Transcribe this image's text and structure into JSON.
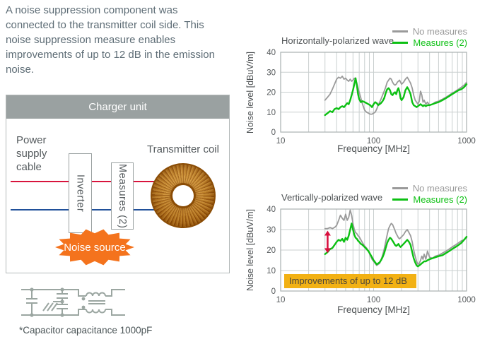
{
  "intro": "A noise suppression component was connected to the transmitter coil side. This noise suppression measure enables improvements of up to 12 dB in the emission noise.",
  "diagram": {
    "title": "Charger unit",
    "cable_label": "Power supply cable",
    "inverter_label": "Inverter",
    "measures_label": "Measures (2)",
    "coil_label": "Transmitter coil",
    "noise_label": "Noise source",
    "colors": {
      "line_red": "#d8143c",
      "line_blue": "#20509a",
      "noise_orange": "#f4731d",
      "header_gray": "#9aa1a1"
    }
  },
  "schematic": {
    "caption": "*Capacitor capacitance 1000pF"
  },
  "chart_data": [
    {
      "type": "line",
      "title": "Horizontally-polarized wave",
      "xlabel": "Frequency [MHz]",
      "ylabel": "Noise level [dBuV/m]",
      "xscale": "log",
      "xlim": [
        10,
        1000
      ],
      "ylim": [
        0,
        40
      ],
      "xticks": [
        10,
        100,
        1000
      ],
      "yticks": [
        0,
        10,
        20,
        30,
        40
      ],
      "grid": true,
      "legend_position": "top-right",
      "x": [
        30,
        32,
        34,
        36,
        38,
        40,
        42,
        44,
        46,
        48,
        50,
        52,
        54,
        56,
        58,
        60,
        62,
        64,
        66,
        68,
        70,
        73,
        76,
        80,
        84,
        88,
        92,
        96,
        100,
        104,
        108,
        112,
        116,
        120,
        125,
        130,
        135,
        140,
        145,
        150,
        155,
        160,
        165,
        170,
        175,
        180,
        185,
        190,
        195,
        200,
        210,
        220,
        230,
        240,
        250,
        260,
        270,
        280,
        290,
        300,
        310,
        320,
        330,
        340,
        350,
        365,
        380,
        400,
        430,
        460,
        500,
        550,
        600,
        650,
        700,
        760,
        820,
        880,
        940,
        1000
      ],
      "series": [
        {
          "name": "No measures",
          "color": "#9a9a9a",
          "y": [
            16,
            17.5,
            19,
            21.5,
            24,
            26.5,
            27.5,
            27,
            28,
            26.5,
            27,
            26,
            25.5,
            26.5,
            25.5,
            26,
            27,
            26.5,
            24.5,
            22,
            20,
            17,
            14,
            11,
            10,
            9.5,
            9,
            9,
            9.5,
            10,
            11.5,
            13.5,
            15,
            16.5,
            18.5,
            20.5,
            22.5,
            25,
            26,
            27,
            26.5,
            25,
            24,
            23.5,
            24,
            25,
            25.5,
            26,
            25,
            24,
            25,
            26.5,
            27.5,
            26,
            24.5,
            22,
            18.5,
            16,
            15,
            14,
            15.5,
            20.5,
            18.5,
            15,
            16,
            14,
            15,
            13.5,
            14,
            15,
            15.5,
            16.5,
            17.5,
            18.5,
            19.5,
            20.5,
            21.5,
            22.5,
            23.5,
            25
          ]
        },
        {
          "name": "Measures (2)",
          "color": "#0cc013",
          "y": [
            8.5,
            9.5,
            10.5,
            10,
            11.5,
            12,
            11.5,
            12.5,
            13,
            12.5,
            13.5,
            14.5,
            14,
            16,
            18.5,
            21,
            24,
            27,
            23.5,
            19,
            16.5,
            15,
            15.5,
            15,
            14.5,
            14,
            13.5,
            12.5,
            14,
            15,
            14.5,
            13.5,
            14,
            14.5,
            15.5,
            17,
            19.5,
            21.5,
            22,
            21,
            19,
            18.5,
            19.5,
            20,
            19,
            21,
            22,
            20,
            17,
            16,
            17.5,
            21,
            22.5,
            21,
            19,
            15,
            13.5,
            13,
            12.5,
            13,
            13.5,
            14,
            13.5,
            13,
            13.5,
            13,
            13.5,
            13.5,
            14,
            14.5,
            15,
            16,
            17,
            18,
            19,
            20,
            21,
            21.5,
            22.5,
            24
          ]
        }
      ]
    },
    {
      "type": "line",
      "title": "Vertically-polarized wave",
      "xlabel": "Frequency [MHz]",
      "ylabel": "Noise level [dBuV/m]",
      "xscale": "log",
      "xlim": [
        10,
        1000
      ],
      "ylim": [
        0,
        40
      ],
      "xticks": [
        10,
        100,
        1000
      ],
      "yticks": [
        0,
        10,
        20,
        30,
        40
      ],
      "grid": true,
      "legend_position": "top-right",
      "x": [
        30,
        32,
        34,
        36,
        38,
        40,
        42,
        44,
        46,
        48,
        50,
        52,
        54,
        56,
        58,
        60,
        62,
        64,
        66,
        68,
        70,
        73,
        76,
        80,
        84,
        88,
        92,
        96,
        100,
        104,
        108,
        112,
        116,
        120,
        125,
        130,
        135,
        140,
        145,
        150,
        155,
        160,
        165,
        170,
        175,
        180,
        185,
        190,
        195,
        200,
        210,
        220,
        230,
        240,
        250,
        260,
        270,
        280,
        290,
        300,
        310,
        320,
        330,
        340,
        350,
        365,
        380,
        400,
        430,
        460,
        500,
        550,
        600,
        650,
        700,
        760,
        820,
        880,
        940,
        1000
      ],
      "series": [
        {
          "name": "No measures",
          "color": "#9a9a9a",
          "y": [
            30.5,
            30.5,
            31,
            30.5,
            31,
            32,
            34.5,
            37,
            35.5,
            34.5,
            37.5,
            34.5,
            36,
            39.5,
            37,
            33,
            30,
            28.5,
            28,
            27,
            26.5,
            25,
            23.5,
            22,
            21,
            19.5,
            17.5,
            15.5,
            14.5,
            13.5,
            12.5,
            13,
            13.5,
            15,
            17.5,
            20.5,
            24,
            27.5,
            30.5,
            32,
            33,
            32.5,
            31,
            29.5,
            28,
            27,
            26,
            25.5,
            26,
            26.5,
            27.5,
            29,
            30,
            28.5,
            27,
            24,
            20,
            17,
            14.5,
            13,
            13.5,
            15,
            17,
            15.5,
            18,
            15.5,
            19.5,
            16.5,
            16,
            17,
            17.5,
            18.5,
            19.5,
            20.5,
            21.5,
            22.5,
            23.5,
            24.5,
            25,
            26
          ]
        },
        {
          "name": "Measures (2)",
          "color": "#0cc013",
          "y": [
            18,
            19,
            20.5,
            21,
            22.5,
            24,
            25,
            24.5,
            25.5,
            24,
            26,
            25,
            27,
            30,
            33,
            30,
            27.5,
            26,
            25.5,
            24.5,
            24,
            23,
            22.5,
            21.5,
            20.5,
            19.5,
            18,
            16.5,
            15,
            14,
            13,
            13.5,
            14,
            15,
            16.5,
            18.5,
            21,
            23.5,
            25,
            26,
            25.5,
            24.5,
            23.5,
            22.5,
            22,
            22.5,
            23,
            22,
            21.5,
            22,
            23,
            24,
            25,
            24,
            22.5,
            19,
            16,
            14,
            12.5,
            12,
            12.5,
            13,
            13.5,
            14,
            14.5,
            14.5,
            15,
            15.5,
            16,
            16.5,
            17,
            17.5,
            18.5,
            19.5,
            20.5,
            21.5,
            22.5,
            23.5,
            25,
            26.5
          ]
        }
      ],
      "arrow": {
        "x": 32,
        "y_from": 18.5,
        "y_to": 29.5,
        "color": "#d8103f"
      },
      "annotation": {
        "text": "Improvements of up to 12 dB",
        "bg": "#f2b114",
        "color": "#4c4639"
      }
    }
  ]
}
